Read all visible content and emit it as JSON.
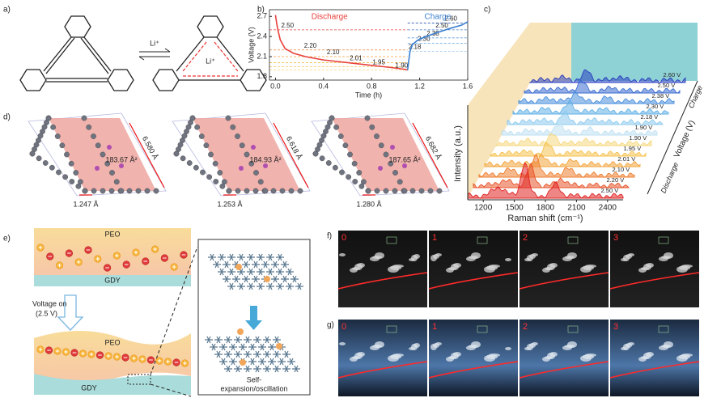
{
  "panel_labels": [
    "a)",
    "b)",
    "c)",
    "d)",
    "e)",
    "f)",
    "g)"
  ],
  "a": {
    "reagent": "Li⁺",
    "bound_ion": "Li⁺"
  },
  "chart_data": [
    {
      "type": "line",
      "xlabel": "Time (h)",
      "ylabel": "Voltage (V)",
      "xlim": [
        -0.05,
        1.6
      ],
      "ylim": [
        1.75,
        2.8
      ],
      "xticks": [
        {
          "value": 0,
          "label": "0.0"
        },
        0.4,
        0.8,
        1.2,
        1.6
      ],
      "yticks": [
        1.8,
        2.1,
        2.4,
        2.7
      ],
      "series": [
        {
          "name": "Discharge",
          "color": "#e8413c",
          "x": [
            0,
            0.01,
            0.02,
            0.04,
            0.08,
            0.15,
            0.25,
            0.4,
            0.6,
            0.8,
            0.95,
            1.08,
            1.1
          ],
          "values": [
            2.72,
            2.6,
            2.5,
            2.35,
            2.22,
            2.15,
            2.1,
            2.05,
            2.01,
            1.97,
            1.94,
            1.91,
            1.9
          ],
          "levels": [
            {
              "value": 2.5,
              "label": "2.50",
              "color": "#e8413c"
            },
            {
              "value": 2.2,
              "label": "2.20",
              "color": "#ee7d3a"
            },
            {
              "value": 2.1,
              "label": "2.10",
              "color": "#f2a03c"
            },
            {
              "value": 2.01,
              "label": "2.01",
              "color": "#f5bb45"
            },
            {
              "value": 1.95,
              "label": "1.95",
              "color": "#f6cd6a"
            },
            {
              "value": 1.9,
              "label": "1.90",
              "color": "#f6dc90"
            }
          ]
        },
        {
          "name": "Charge",
          "color": "#3a7fd0",
          "x": [
            1.1,
            1.11,
            1.12,
            1.14,
            1.18,
            1.25,
            1.35,
            1.45,
            1.55,
            1.6
          ],
          "values": [
            1.9,
            2.05,
            2.18,
            2.28,
            2.34,
            2.4,
            2.46,
            2.52,
            2.57,
            2.62
          ],
          "levels": [
            {
              "value": 2.18,
              "label": "2.18",
              "color": "#9cc9ee"
            },
            {
              "value": 2.3,
              "label": "2.30",
              "color": "#7bb2e6"
            },
            {
              "value": 2.38,
              "label": "2.38",
              "color": "#5b98db"
            },
            {
              "value": 2.5,
              "label": "2.50",
              "color": "#3f78c8"
            },
            {
              "value": 2.6,
              "label": "2.60",
              "color": "#2f58b0"
            }
          ]
        }
      ]
    },
    {
      "type": "waterfall",
      "xlabel": "Raman shift (cm⁻¹)",
      "ylabel": "Intensity (a.u.)",
      "zlabel": "Voltage (V)",
      "charge_label": "Charge",
      "discharge_label": "Discharge",
      "xlim": [
        1050,
        2550
      ],
      "xticks": [
        1200,
        1500,
        1800,
        2100,
        2400
      ],
      "series": [
        {
          "name": "2.50 V",
          "color": "#e02222"
        },
        {
          "name": "2.20 V",
          "color": "#e8552a"
        },
        {
          "name": "2.10 V",
          "color": "#ee7f30"
        },
        {
          "name": "2.01 V",
          "color": "#f3a43a"
        },
        {
          "name": "1.95 V",
          "color": "#f6c250"
        },
        {
          "name": "1.90 V",
          "color": "#f5d880"
        },
        {
          "name": "1.90 V",
          "color": "#bfe0f2"
        },
        {
          "name": "2.18 V",
          "color": "#8ecbee"
        },
        {
          "name": "2.30 V",
          "color": "#62b0e6"
        },
        {
          "name": "2.38 V",
          "color": "#4a8fdc"
        },
        {
          "name": "2.50 V",
          "color": "#3a6bd0"
        },
        {
          "name": "2.60 V",
          "color": "#2a3fc0"
        }
      ]
    }
  ],
  "d": {
    "cells": [
      {
        "area": "183.67 Å²",
        "edge": "6.580 Å",
        "bond": "1.247 Å"
      },
      {
        "area": "184.93 Å²",
        "edge": "6.618 Å",
        "bond": "1.253 Å"
      },
      {
        "area": "187.65 Å²",
        "edge": "6.682 Å",
        "bond": "1.280 Å"
      }
    ]
  },
  "e": {
    "top_layer": "PEO",
    "bottom_layer": "GDY",
    "voltage": "Voltage on",
    "voltage_value": "(2.5 V)",
    "top_layer_after": "PEO",
    "bottom_layer_after": "GDY",
    "caption_1": "Self-",
    "caption_2": "expansion/oscillation"
  },
  "f": {
    "frames": [
      "0",
      "1",
      "2",
      "3"
    ]
  },
  "g": {
    "frames": [
      "0",
      "1",
      "2",
      "3"
    ]
  }
}
